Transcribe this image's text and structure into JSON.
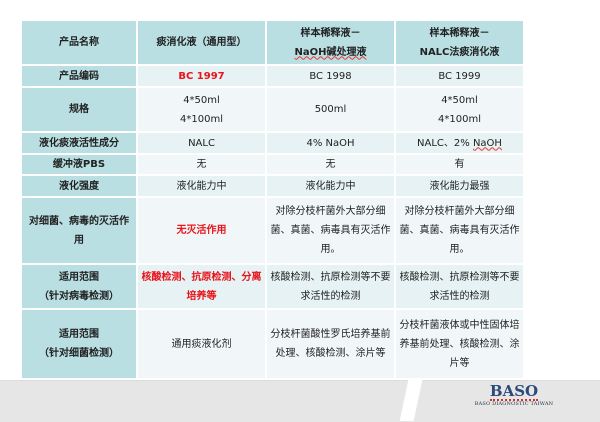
{
  "columns": [
    "产品名称",
    "痰消化液（通用型）",
    "样本稀释液－",
    "NaOH碱处理液",
    "样本稀释液－",
    "NALC法痰消化液"
  ],
  "rows": {
    "code": {
      "label": "产品编码",
      "v": [
        "BC 1997",
        "BC 1998",
        "BC 1999"
      ]
    },
    "spec": {
      "label": "规格",
      "v1a": "4*50ml",
      "v1b": "4*100ml",
      "v2": "500ml",
      "v3a": "4*50ml",
      "v3b": "4*100ml"
    },
    "active": {
      "label": "液化痰液活性成分",
      "v": [
        "NALC",
        "4% NaOH",
        "NALC、2% "
      ],
      "naoh": "NaOH"
    },
    "pbs": {
      "label": "缓冲液PBS",
      "v": [
        "无",
        "无",
        "有"
      ]
    },
    "strength": {
      "label": "液化强度",
      "v": [
        "液化能力中",
        "液化能力中",
        "液化能力最强"
      ]
    },
    "inact": {
      "label": "对细菌、病毒的灭活作用",
      "v": [
        "无灭活作用",
        "对除分枝杆菌外大部分细菌、真菌、病毒具有灭活作用。",
        "对除分枝杆菌外大部分细菌、真菌、病毒具有灭活作用。"
      ]
    },
    "virus": {
      "label1": "适用范围",
      "label2": "（针对病毒检测）",
      "v": [
        "核酸检测、抗原检测、分离培养等",
        "核酸检测、抗原检测等不要求活性的检测",
        "核酸检测、抗原检测等不要求活性的检测"
      ]
    },
    "bact": {
      "label1": "适用范围",
      "label2": "（针对细菌检测）",
      "v": [
        "通用痰液化剂",
        "分枝杆菌酸性罗氏培养基前处理、核酸检测、涂片等",
        "分枝杆菌液体或中性固体培养基前处理、核酸检测、涂片等"
      ]
    }
  },
  "logo": {
    "brand": "BASO",
    "tagline": "BASO DIAGNOSTIC TAIWAN"
  }
}
